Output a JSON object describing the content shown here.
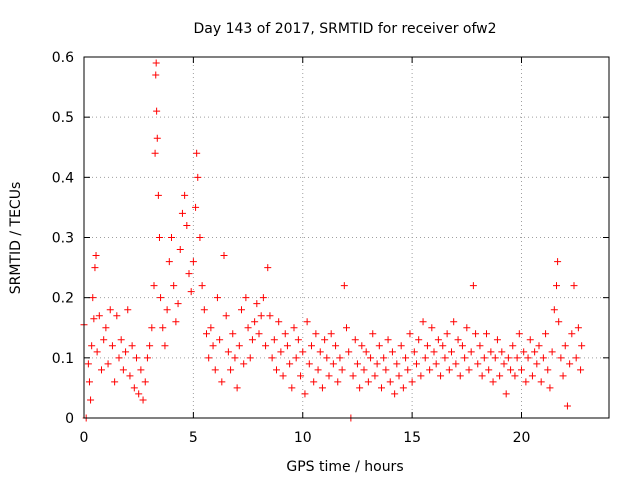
{
  "chart_data": {
    "type": "scatter",
    "title": "Day 143 of 2017, SRMTID for receiver ofw2",
    "xlabel": "GPS time / hours",
    "ylabel": "SRMTID / TECUs",
    "xlim": [
      0,
      24
    ],
    "ylim": [
      0,
      0.6
    ],
    "xticks": [
      0,
      5,
      10,
      15,
      20
    ],
    "yticks": [
      0,
      0.1,
      0.2,
      0.3,
      0.4,
      0.5,
      0.6
    ],
    "xtick_labels": [
      "0",
      "5",
      "10",
      "15",
      "20"
    ],
    "ytick_labels": [
      "0",
      "0.1",
      "0.2",
      "0.3",
      "0.4",
      "0.5",
      "0.6"
    ],
    "grid": true,
    "marker": "plus",
    "color": "#ff0000",
    "series": [
      {
        "name": "SRMTID",
        "points": [
          [
            0.0,
            0.155
          ],
          [
            0.1,
            0.0
          ],
          [
            0.2,
            0.09
          ],
          [
            0.25,
            0.06
          ],
          [
            0.3,
            0.03
          ],
          [
            0.35,
            0.12
          ],
          [
            0.4,
            0.2
          ],
          [
            0.45,
            0.165
          ],
          [
            0.5,
            0.25
          ],
          [
            0.55,
            0.27
          ],
          [
            0.6,
            0.11
          ],
          [
            0.7,
            0.17
          ],
          [
            0.8,
            0.08
          ],
          [
            0.9,
            0.13
          ],
          [
            1.0,
            0.15
          ],
          [
            1.1,
            0.09
          ],
          [
            1.2,
            0.18
          ],
          [
            1.3,
            0.12
          ],
          [
            1.4,
            0.06
          ],
          [
            1.5,
            0.17
          ],
          [
            1.6,
            0.1
          ],
          [
            1.7,
            0.13
          ],
          [
            1.8,
            0.08
          ],
          [
            1.9,
            0.11
          ],
          [
            2.0,
            0.18
          ],
          [
            2.1,
            0.07
          ],
          [
            2.2,
            0.12
          ],
          [
            2.3,
            0.05
          ],
          [
            2.4,
            0.1
          ],
          [
            2.5,
            0.04
          ],
          [
            2.6,
            0.08
          ],
          [
            2.7,
            0.03
          ],
          [
            2.8,
            0.06
          ],
          [
            2.9,
            0.1
          ],
          [
            3.0,
            0.12
          ],
          [
            3.1,
            0.15
          ],
          [
            3.2,
            0.22
          ],
          [
            3.25,
            0.44
          ],
          [
            3.28,
            0.57
          ],
          [
            3.3,
            0.59
          ],
          [
            3.32,
            0.51
          ],
          [
            3.35,
            0.465
          ],
          [
            3.4,
            0.37
          ],
          [
            3.45,
            0.3
          ],
          [
            3.5,
            0.2
          ],
          [
            3.6,
            0.15
          ],
          [
            3.7,
            0.12
          ],
          [
            3.8,
            0.18
          ],
          [
            3.9,
            0.26
          ],
          [
            4.0,
            0.3
          ],
          [
            4.1,
            0.22
          ],
          [
            4.2,
            0.16
          ],
          [
            4.3,
            0.19
          ],
          [
            4.4,
            0.28
          ],
          [
            4.5,
            0.34
          ],
          [
            4.6,
            0.37
          ],
          [
            4.7,
            0.32
          ],
          [
            4.8,
            0.24
          ],
          [
            4.9,
            0.21
          ],
          [
            5.0,
            0.26
          ],
          [
            5.1,
            0.35
          ],
          [
            5.15,
            0.44
          ],
          [
            5.2,
            0.4
          ],
          [
            5.3,
            0.3
          ],
          [
            5.4,
            0.22
          ],
          [
            5.5,
            0.18
          ],
          [
            5.6,
            0.14
          ],
          [
            5.7,
            0.1
          ],
          [
            5.8,
            0.15
          ],
          [
            5.9,
            0.12
          ],
          [
            6.0,
            0.08
          ],
          [
            6.1,
            0.2
          ],
          [
            6.2,
            0.13
          ],
          [
            6.3,
            0.06
          ],
          [
            6.4,
            0.27
          ],
          [
            6.5,
            0.17
          ],
          [
            6.6,
            0.11
          ],
          [
            6.7,
            0.08
          ],
          [
            6.8,
            0.14
          ],
          [
            6.9,
            0.1
          ],
          [
            7.0,
            0.05
          ],
          [
            7.1,
            0.12
          ],
          [
            7.2,
            0.18
          ],
          [
            7.3,
            0.09
          ],
          [
            7.4,
            0.2
          ],
          [
            7.5,
            0.15
          ],
          [
            7.6,
            0.1
          ],
          [
            7.7,
            0.13
          ],
          [
            7.8,
            0.16
          ],
          [
            7.9,
            0.19
          ],
          [
            8.0,
            0.14
          ],
          [
            8.1,
            0.17
          ],
          [
            8.2,
            0.2
          ],
          [
            8.3,
            0.12
          ],
          [
            8.4,
            0.25
          ],
          [
            8.5,
            0.17
          ],
          [
            8.6,
            0.1
          ],
          [
            8.7,
            0.13
          ],
          [
            8.8,
            0.08
          ],
          [
            8.9,
            0.16
          ],
          [
            9.0,
            0.11
          ],
          [
            9.1,
            0.07
          ],
          [
            9.2,
            0.14
          ],
          [
            9.3,
            0.12
          ],
          [
            9.4,
            0.09
          ],
          [
            9.5,
            0.05
          ],
          [
            9.6,
            0.15
          ],
          [
            9.7,
            0.1
          ],
          [
            9.8,
            0.13
          ],
          [
            9.9,
            0.07
          ],
          [
            10.0,
            0.11
          ],
          [
            10.1,
            0.04
          ],
          [
            10.2,
            0.16
          ],
          [
            10.3,
            0.09
          ],
          [
            10.4,
            0.12
          ],
          [
            10.5,
            0.06
          ],
          [
            10.6,
            0.14
          ],
          [
            10.7,
            0.08
          ],
          [
            10.8,
            0.11
          ],
          [
            10.9,
            0.05
          ],
          [
            11.0,
            0.13
          ],
          [
            11.1,
            0.1
          ],
          [
            11.2,
            0.07
          ],
          [
            11.3,
            0.14
          ],
          [
            11.4,
            0.09
          ],
          [
            11.5,
            0.12
          ],
          [
            11.6,
            0.06
          ],
          [
            11.7,
            0.1
          ],
          [
            11.8,
            0.08
          ],
          [
            11.9,
            0.22
          ],
          [
            12.0,
            0.15
          ],
          [
            12.1,
            0.11
          ],
          [
            12.2,
            0.0
          ],
          [
            12.3,
            0.07
          ],
          [
            12.4,
            0.13
          ],
          [
            12.5,
            0.09
          ],
          [
            12.6,
            0.05
          ],
          [
            12.7,
            0.12
          ],
          [
            12.8,
            0.08
          ],
          [
            12.9,
            0.11
          ],
          [
            13.0,
            0.06
          ],
          [
            13.1,
            0.1
          ],
          [
            13.2,
            0.14
          ],
          [
            13.3,
            0.07
          ],
          [
            13.4,
            0.09
          ],
          [
            13.5,
            0.12
          ],
          [
            13.6,
            0.05
          ],
          [
            13.7,
            0.1
          ],
          [
            13.8,
            0.08
          ],
          [
            13.9,
            0.13
          ],
          [
            14.0,
            0.06
          ],
          [
            14.1,
            0.11
          ],
          [
            14.2,
            0.04
          ],
          [
            14.3,
            0.09
          ],
          [
            14.4,
            0.07
          ],
          [
            14.5,
            0.12
          ],
          [
            14.6,
            0.05
          ],
          [
            14.7,
            0.1
          ],
          [
            14.8,
            0.08
          ],
          [
            14.9,
            0.14
          ],
          [
            15.0,
            0.06
          ],
          [
            15.1,
            0.11
          ],
          [
            15.2,
            0.09
          ],
          [
            15.3,
            0.13
          ],
          [
            15.4,
            0.07
          ],
          [
            15.5,
            0.16
          ],
          [
            15.6,
            0.1
          ],
          [
            15.7,
            0.12
          ],
          [
            15.8,
            0.08
          ],
          [
            15.9,
            0.15
          ],
          [
            16.0,
            0.11
          ],
          [
            16.1,
            0.09
          ],
          [
            16.2,
            0.13
          ],
          [
            16.3,
            0.07
          ],
          [
            16.4,
            0.12
          ],
          [
            16.5,
            0.1
          ],
          [
            16.6,
            0.14
          ],
          [
            16.7,
            0.08
          ],
          [
            16.8,
            0.11
          ],
          [
            16.9,
            0.16
          ],
          [
            17.0,
            0.09
          ],
          [
            17.1,
            0.13
          ],
          [
            17.2,
            0.07
          ],
          [
            17.3,
            0.12
          ],
          [
            17.4,
            0.1
          ],
          [
            17.5,
            0.15
          ],
          [
            17.6,
            0.08
          ],
          [
            17.7,
            0.11
          ],
          [
            17.8,
            0.22
          ],
          [
            17.9,
            0.14
          ],
          [
            18.0,
            0.09
          ],
          [
            18.1,
            0.12
          ],
          [
            18.2,
            0.07
          ],
          [
            18.3,
            0.1
          ],
          [
            18.4,
            0.14
          ],
          [
            18.5,
            0.08
          ],
          [
            18.6,
            0.11
          ],
          [
            18.7,
            0.06
          ],
          [
            18.8,
            0.1
          ],
          [
            18.9,
            0.13
          ],
          [
            19.0,
            0.07
          ],
          [
            19.1,
            0.11
          ],
          [
            19.2,
            0.09
          ],
          [
            19.3,
            0.04
          ],
          [
            19.4,
            0.1
          ],
          [
            19.5,
            0.08
          ],
          [
            19.6,
            0.12
          ],
          [
            19.7,
            0.07
          ],
          [
            19.8,
            0.1
          ],
          [
            19.9,
            0.14
          ],
          [
            20.0,
            0.08
          ],
          [
            20.1,
            0.11
          ],
          [
            20.2,
            0.06
          ],
          [
            20.3,
            0.1
          ],
          [
            20.4,
            0.13
          ],
          [
            20.5,
            0.07
          ],
          [
            20.6,
            0.11
          ],
          [
            20.7,
            0.09
          ],
          [
            20.8,
            0.12
          ],
          [
            20.9,
            0.06
          ],
          [
            21.0,
            0.1
          ],
          [
            21.1,
            0.14
          ],
          [
            21.2,
            0.08
          ],
          [
            21.3,
            0.05
          ],
          [
            21.4,
            0.11
          ],
          [
            21.5,
            0.18
          ],
          [
            21.6,
            0.22
          ],
          [
            21.65,
            0.26
          ],
          [
            21.7,
            0.16
          ],
          [
            21.8,
            0.1
          ],
          [
            21.9,
            0.07
          ],
          [
            22.0,
            0.12
          ],
          [
            22.1,
            0.02
          ],
          [
            22.2,
            0.09
          ],
          [
            22.3,
            0.14
          ],
          [
            22.4,
            0.22
          ],
          [
            22.5,
            0.1
          ],
          [
            22.6,
            0.15
          ],
          [
            22.7,
            0.08
          ],
          [
            22.75,
            0.12
          ]
        ]
      }
    ]
  }
}
